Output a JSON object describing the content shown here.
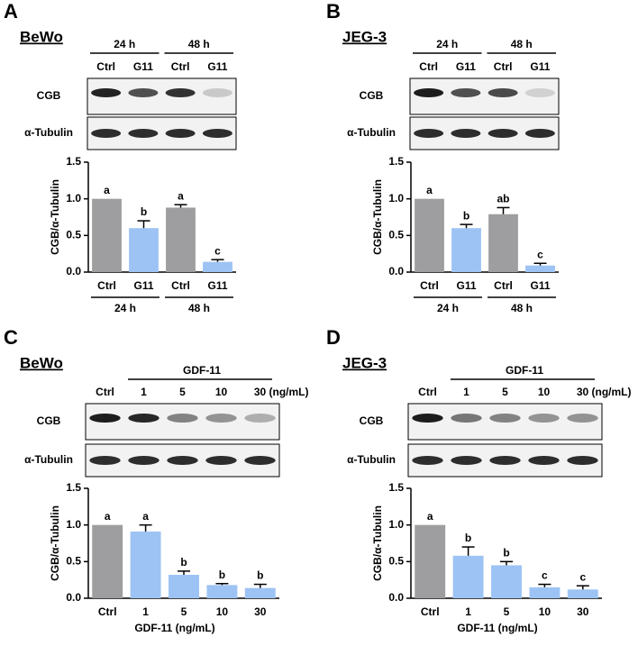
{
  "panels": [
    {
      "label": "A",
      "cell_line": "BeWo",
      "blot": {
        "groups": [
          "24 h",
          "48 h"
        ],
        "lanes": [
          "Ctrl",
          "G11",
          "Ctrl",
          "G11"
        ],
        "rows": [
          "CGB",
          "α-Tubulin"
        ]
      }
    },
    {
      "label": "B",
      "cell_line": "JEG-3",
      "blot": {
        "groups": [
          "24 h",
          "48 h"
        ],
        "lanes": [
          "Ctrl",
          "G11",
          "Ctrl",
          "G11"
        ],
        "rows": [
          "CGB",
          "α-Tubulin"
        ]
      }
    },
    {
      "label": "C",
      "cell_line": "BeWo",
      "blot": {
        "header": "GDF-11",
        "lanes": [
          "Ctrl",
          "1",
          "5",
          "10",
          "30"
        ],
        "unit": "(ng/mL)",
        "rows": [
          "CGB",
          "α-Tubulin"
        ]
      }
    },
    {
      "label": "D",
      "cell_line": "JEG-3",
      "blot": {
        "header": "GDF-11",
        "lanes": [
          "Ctrl",
          "1",
          "5",
          "10",
          "30"
        ],
        "unit": "(ng/mL)",
        "rows": [
          "CGB",
          "α-Tubulin"
        ]
      }
    }
  ],
  "chart_data": [
    {
      "type": "bar",
      "ylabel": "CGB/α-Tubulin",
      "categories": [
        "Ctrl",
        "G11",
        "Ctrl",
        "G11"
      ],
      "groups": [
        "24 h",
        "48 h"
      ],
      "values": [
        1.0,
        0.6,
        0.88,
        0.14
      ],
      "errors": [
        0,
        0.1,
        0.04,
        0.03
      ],
      "annotations": [
        "a",
        "b",
        "a",
        "c"
      ],
      "colors": [
        "#9e9ea0",
        "#9dc3f4",
        "#9e9ea0",
        "#9dc3f4"
      ],
      "ylim": [
        0,
        1.5
      ],
      "yticks": [
        {
          "value": 0,
          "label": "0.0"
        },
        {
          "value": 0.5,
          "label": "0.5"
        },
        {
          "value": 1,
          "label": "1.0"
        },
        {
          "value": 1.5,
          "label": "1.5"
        }
      ]
    },
    {
      "type": "bar",
      "ylabel": "CGB/α-Tubulin",
      "categories": [
        "Ctrl",
        "G11",
        "Ctrl",
        "G11"
      ],
      "groups": [
        "24 h",
        "48 h"
      ],
      "values": [
        1.0,
        0.6,
        0.79,
        0.09
      ],
      "errors": [
        0,
        0.05,
        0.09,
        0.03
      ],
      "annotations": [
        "a",
        "b",
        "ab",
        "c"
      ],
      "colors": [
        "#9e9ea0",
        "#9dc3f4",
        "#9e9ea0",
        "#9dc3f4"
      ],
      "ylim": [
        0,
        1.5
      ],
      "yticks": [
        {
          "value": 0,
          "label": "0.0"
        },
        {
          "value": 0.5,
          "label": "0.5"
        },
        {
          "value": 1,
          "label": "1.0"
        },
        {
          "value": 1.5,
          "label": "1.5"
        }
      ]
    },
    {
      "type": "bar",
      "ylabel": "CGB/α-Tubulin",
      "xlabel": "GDF-11 (ng/mL)",
      "categories": [
        "Ctrl",
        "1",
        "5",
        "10",
        "30"
      ],
      "values": [
        1.0,
        0.91,
        0.32,
        0.18,
        0.14
      ],
      "errors": [
        0,
        0.09,
        0.05,
        0.02,
        0.05
      ],
      "annotations": [
        "a",
        "a",
        "b",
        "b",
        "b"
      ],
      "colors": [
        "#9e9ea0",
        "#9dc3f4",
        "#9dc3f4",
        "#9dc3f4",
        "#9dc3f4"
      ],
      "ylim": [
        0,
        1.5
      ],
      "yticks": [
        {
          "value": 0,
          "label": "0.0"
        },
        {
          "value": 0.5,
          "label": "0.5"
        },
        {
          "value": 1,
          "label": "1.0"
        },
        {
          "value": 1.5,
          "label": "1.5"
        }
      ]
    },
    {
      "type": "bar",
      "ylabel": "CGB/α-Tubulin",
      "xlabel": "GDF-11 (ng/mL)",
      "categories": [
        "Ctrl",
        "1",
        "5",
        "10",
        "30"
      ],
      "values": [
        1.0,
        0.58,
        0.45,
        0.15,
        0.12
      ],
      "errors": [
        0,
        0.12,
        0.05,
        0.04,
        0.05
      ],
      "annotations": [
        "a",
        "b",
        "b",
        "c",
        "c"
      ],
      "colors": [
        "#9e9ea0",
        "#9dc3f4",
        "#9dc3f4",
        "#9dc3f4",
        "#9dc3f4"
      ],
      "ylim": [
        0,
        1.5
      ],
      "yticks": [
        {
          "value": 0,
          "label": "0.0"
        },
        {
          "value": 0.5,
          "label": "0.5"
        },
        {
          "value": 1,
          "label": "1.0"
        },
        {
          "value": 1.5,
          "label": "1.5"
        }
      ]
    }
  ]
}
